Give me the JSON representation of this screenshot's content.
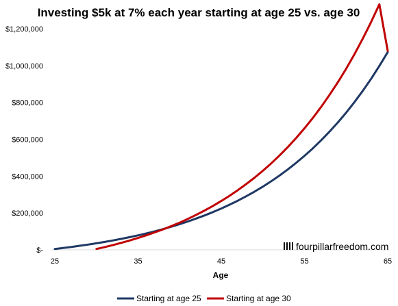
{
  "chart_data": {
    "type": "line",
    "title": "Investing $5k at 7% each year starting at age 25 vs. age 30",
    "xlabel": "Age",
    "ylabel": "",
    "xlim": [
      25,
      65
    ],
    "ylim": [
      0,
      1200000
    ],
    "x_ticks": [
      25,
      35,
      45,
      55,
      65
    ],
    "x_tick_labels": [
      "25",
      "35",
      "45",
      "55",
      "65"
    ],
    "y_ticks": [
      0,
      200000,
      400000,
      600000,
      800000,
      1000000,
      1200000
    ],
    "y_tick_labels": [
      "$-",
      "$200,000",
      "$400,000",
      "$600,000",
      "$800,000",
      "$1,000,000",
      "$1,200,000"
    ],
    "grid": false,
    "legend_position": "bottom",
    "series": [
      {
        "name": "Starting at age 25",
        "color": "#1f3864",
        "x": [
          25,
          26,
          27,
          28,
          29,
          30,
          31,
          32,
          33,
          34,
          35,
          36,
          37,
          38,
          39,
          40,
          41,
          42,
          43,
          44,
          45,
          46,
          47,
          48,
          49,
          50,
          51,
          52,
          53,
          54,
          55,
          56,
          57,
          58,
          59,
          60,
          61,
          62,
          63,
          64,
          65
        ],
        "values": [
          5000,
          10350,
          16075,
          22200,
          28754,
          35767,
          43270,
          51299,
          59890,
          69082,
          78918,
          89442,
          100703,
          112752,
          125645,
          139440,
          154201,
          169995,
          186895,
          204977,
          224326,
          245029,
          267181,
          290884,
          316245,
          343382,
          372419,
          403488,
          436732,
          472303,
          510365,
          551090,
          594666,
          641293,
          691184,
          744567,
          801687,
          862805,
          928201,
          998175,
          1073047
        ]
      },
      {
        "name": "Starting at age 30",
        "color": "#c00000",
        "x": [
          30,
          31,
          32,
          33,
          34,
          35,
          36,
          37,
          38,
          39,
          40,
          41,
          42,
          43,
          44,
          45,
          46,
          47,
          48,
          49,
          50,
          51,
          52,
          53,
          54,
          55,
          56,
          57,
          58,
          59,
          60,
          61,
          62,
          63,
          64,
          65
        ],
        "values": [
          5000,
          15350,
          26425,
          38275,
          50955,
          64522,
          79038,
          94571,
          111191,
          128974,
          148002,
          168362,
          190147,
          213457,
          238399,
          265087,
          293643,
          324198,
          356892,
          391874,
          429305,
          469356,
          512211,
          558066,
          607130,
          659629,
          715803,
          775909,
          840223,
          909039,
          982672,
          1061459,
          1145761,
          1235965,
          1332482,
          1080000
        ]
      }
    ]
  },
  "watermark": {
    "text": "fourpillarfreedom.com"
  },
  "legend": {
    "items": [
      {
        "label": "Starting at age 25",
        "color": "#1f3864"
      },
      {
        "label": "Starting at age 30",
        "color": "#c00000"
      }
    ]
  }
}
